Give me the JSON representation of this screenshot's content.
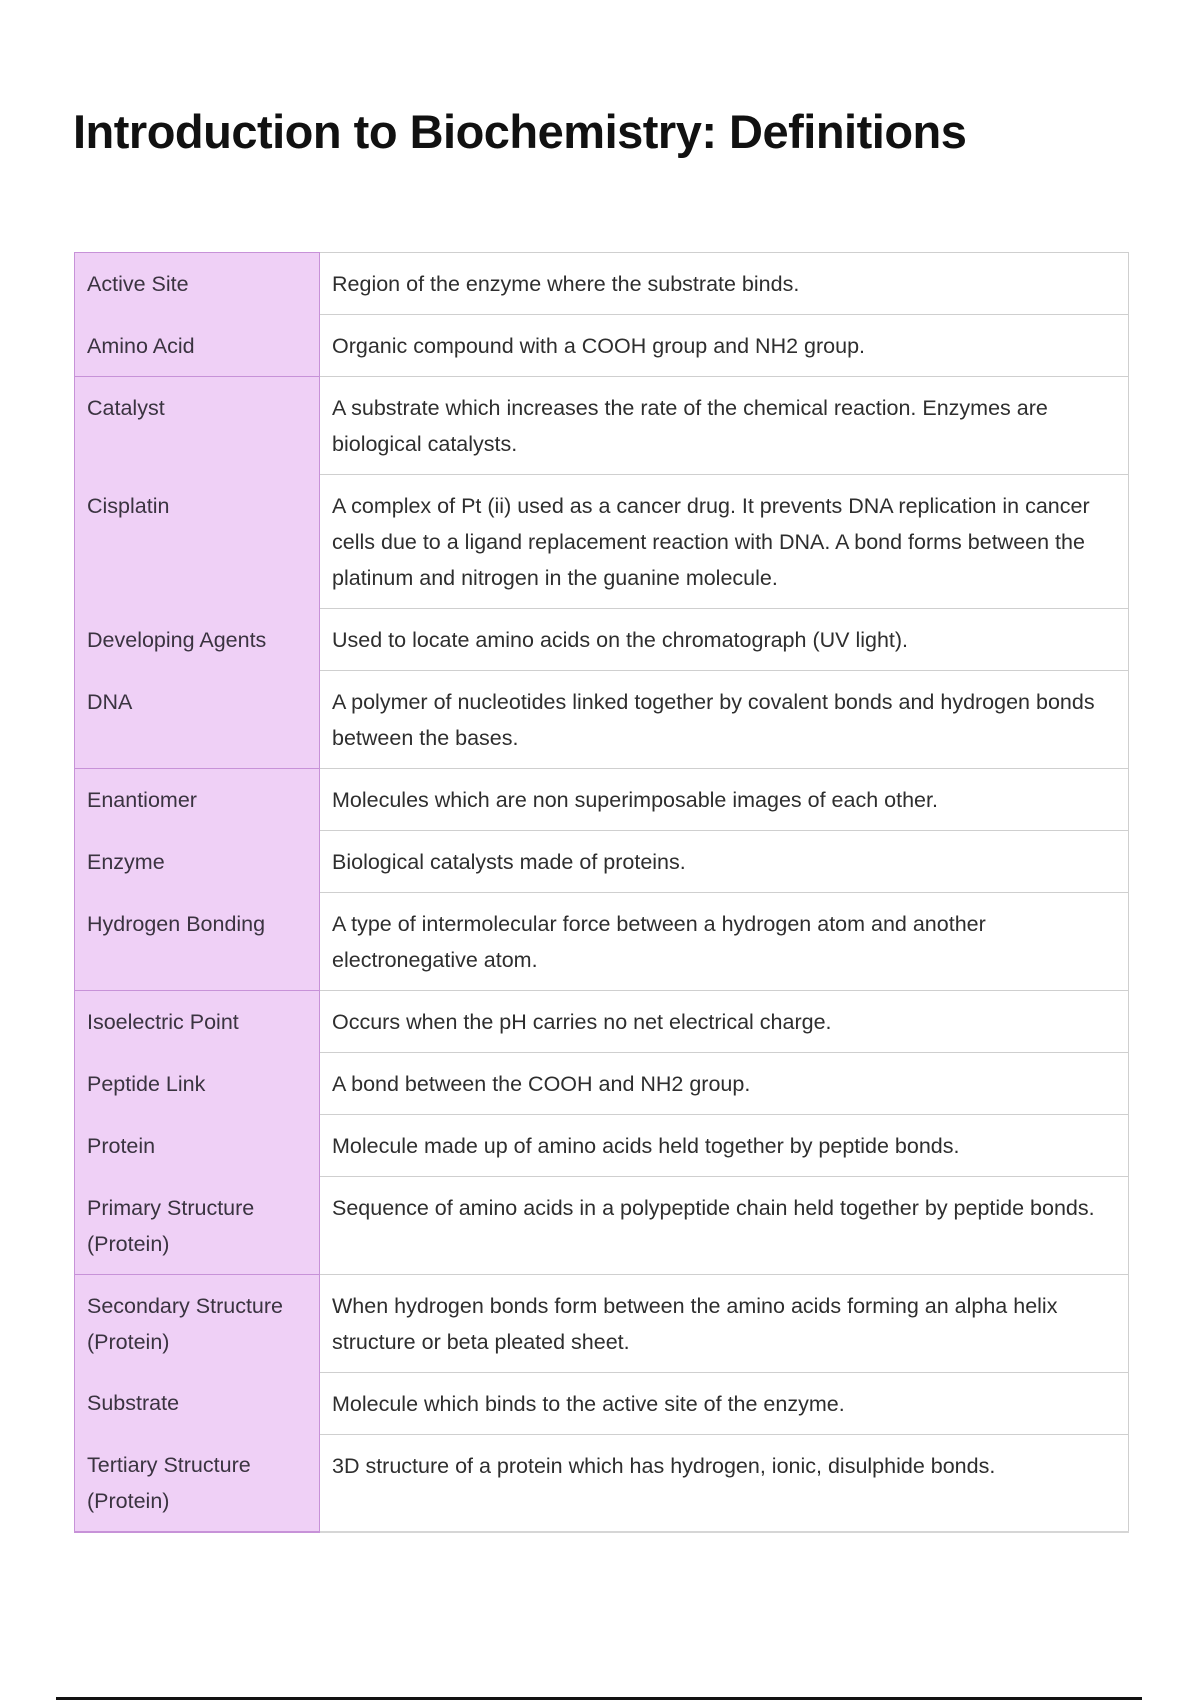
{
  "title": "Introduction to Biochemistry: Definitions",
  "colors": {
    "term_bg": "#efd0f6",
    "term_border": "#c792d8"
  },
  "rows": [
    {
      "term": "Active Site",
      "definition": "Region of the enzyme where the substrate binds.",
      "group_start": true
    },
    {
      "term": "Amino Acid",
      "definition": "Organic compound with a COOH group and NH2 group.",
      "group_start": false
    },
    {
      "term": "Catalyst",
      "definition": "A substrate which increases the rate of the chemical reaction. Enzymes are biological catalysts.",
      "group_start": true
    },
    {
      "term": "Cisplatin",
      "definition": "A complex of Pt (ii) used as a cancer drug. It prevents DNA replication in cancer cells due to a ligand replacement reaction with DNA. A bond forms between the platinum and nitrogen in the guanine molecule.",
      "group_start": false
    },
    {
      "term": "Developing Agents",
      "definition": "Used to locate amino acids on the chromatograph (UV light).",
      "group_start": false
    },
    {
      "term": "DNA",
      "definition": "A polymer of nucleotides linked together by covalent bonds and hydrogen bonds between the bases.",
      "group_start": false
    },
    {
      "term": "Enantiomer",
      "definition": "Molecules which are non superimposable images of each other.",
      "group_start": true
    },
    {
      "term": "Enzyme",
      "definition": "Biological catalysts made of proteins.",
      "group_start": false
    },
    {
      "term": "Hydrogen Bonding",
      "definition": "A type of intermolecular force between a hydrogen atom and another electronegative atom.",
      "group_start": false
    },
    {
      "term": "Isoelectric Point",
      "definition": "Occurs when the pH carries no net electrical charge.",
      "group_start": true
    },
    {
      "term": "Peptide Link",
      "definition": "A bond between the COOH and NH2 group.",
      "group_start": false
    },
    {
      "term": "Protein",
      "definition": "Molecule made up of amino acids held together by peptide bonds.",
      "group_start": false
    },
    {
      "term": "Primary Structure (Protein)",
      "definition": "Sequence of amino acids in a polypeptide chain held together by peptide bonds.",
      "group_start": false
    },
    {
      "term": "Secondary Structure (Protein)",
      "definition": "When hydrogen bonds form between the amino acids forming an alpha helix structure or beta pleated sheet.",
      "group_start": true
    },
    {
      "term": "Substrate",
      "definition": "Molecule which binds to the active site of the enzyme.",
      "group_start": false
    },
    {
      "term": "Tertiary Structure (Protein)",
      "definition": "3D structure of a protein which has hydrogen, ionic, disulphide bonds.",
      "group_start": false
    }
  ]
}
